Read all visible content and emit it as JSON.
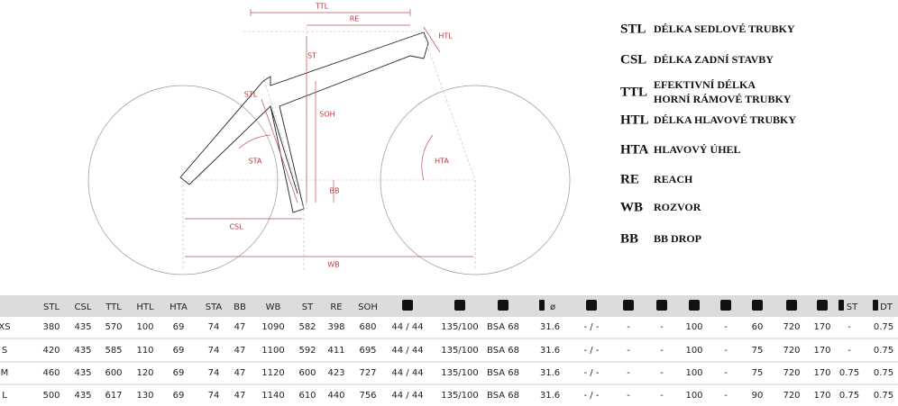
{
  "diagram": {
    "labels": {
      "ttl": "TTL",
      "re": "RE",
      "htl": "HTL",
      "st": "ST",
      "stl": "STL",
      "soh": "SOH",
      "sta": "STA",
      "hta": "HTA",
      "bb": "BB",
      "csl": "CSL",
      "wb": "WB"
    }
  },
  "legend": [
    {
      "abbr": "STL",
      "lines": [
        "DÉLKA SEDLOVÉ TRUBKY"
      ]
    },
    {
      "abbr": "CSL",
      "lines": [
        "DÉLKA ZADNÍ STAVBY"
      ]
    },
    {
      "abbr": "TTL",
      "lines": [
        "EFEKTIVNÍ DÉLKA",
        "HORNÍ RÁMOVÉ TRUBKY"
      ]
    },
    {
      "abbr": "HTL",
      "lines": [
        "DÉLKA HLAVOVÉ TRUBKY"
      ]
    },
    {
      "abbr": "HTA",
      "lines": [
        "HLAVOVÝ ÚHEL"
      ]
    },
    {
      "abbr": "RE",
      "lines": [
        "REACH"
      ]
    },
    {
      "abbr": "WB",
      "lines": [
        "ROZVOR"
      ]
    },
    {
      "abbr": "BB",
      "lines": [
        "BB DROP"
      ]
    }
  ],
  "table": {
    "header": [
      "STL",
      "CSL",
      "TTL",
      "HTL",
      "HTA",
      "STA",
      "BB",
      "WB",
      "ST",
      "RE",
      "SOH",
      null,
      null,
      null,
      "ø",
      null,
      null,
      null,
      null,
      null,
      null,
      null,
      null,
      "ST",
      "DT"
    ],
    "rows": [
      [
        "XS",
        380,
        435,
        570,
        100,
        69,
        74,
        47,
        1090,
        582,
        398,
        680,
        "44 / 44",
        "135/100",
        "BSA 68",
        31.6,
        "- / -",
        "-",
        "-",
        100,
        "-",
        60,
        720,
        170,
        "-",
        0.75
      ],
      [
        "S",
        420,
        435,
        585,
        110,
        69,
        74,
        47,
        1100,
        592,
        411,
        695,
        "44 / 44",
        "135/100",
        "BSA 68",
        31.6,
        "- / -",
        "-",
        "-",
        100,
        "-",
        75,
        720,
        170,
        "-",
        0.75
      ],
      [
        "M",
        460,
        435,
        600,
        120,
        69,
        74,
        47,
        1120,
        600,
        423,
        727,
        "44 / 44",
        "135/100",
        "BSA 68",
        31.6,
        "- / -",
        "-",
        "-",
        100,
        "-",
        75,
        720,
        170,
        0.75,
        0.75
      ],
      [
        "L",
        500,
        435,
        617,
        130,
        69,
        74,
        47,
        1140,
        610,
        440,
        756,
        "44 / 44",
        "135/100",
        "BSA 68",
        31.6,
        "- / -",
        "-",
        "-",
        100,
        "-",
        90,
        720,
        170,
        0.75,
        0.75
      ]
    ]
  }
}
